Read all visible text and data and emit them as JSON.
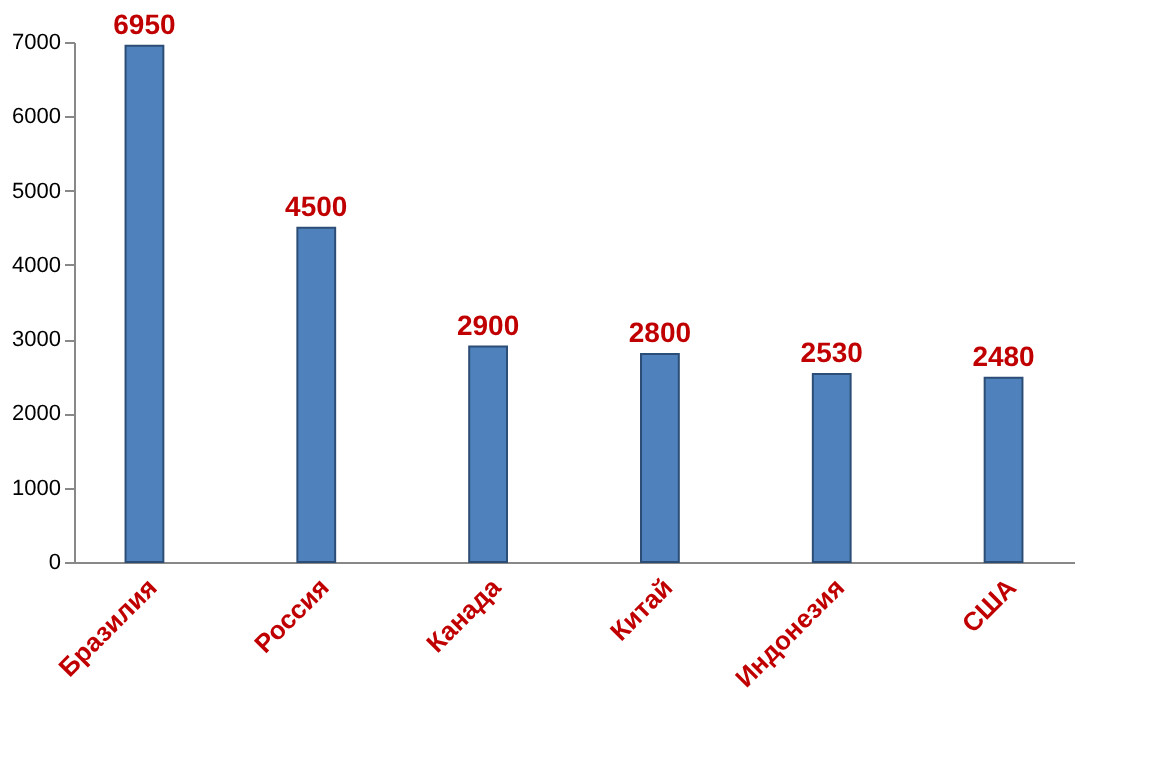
{
  "chart_data": {
    "type": "bar",
    "categories": [
      "Бразилия",
      "Россия",
      "Канада",
      "Китай",
      "Индонезия",
      "США"
    ],
    "values": [
      6950,
      4500,
      2900,
      2800,
      2530,
      2480
    ],
    "color": "#4f81bd",
    "ylim": [
      0,
      7000
    ],
    "yticks": [
      0,
      1000,
      2000,
      3000,
      4000,
      5000,
      6000,
      7000
    ],
    "grid": false,
    "data_labels": true
  }
}
